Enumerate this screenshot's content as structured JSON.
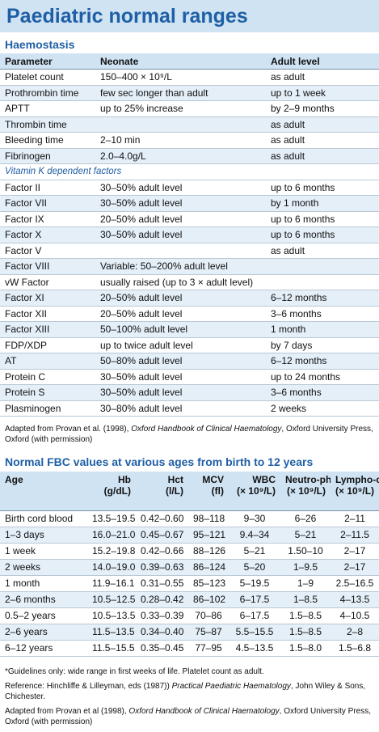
{
  "title": "Paediatric normal ranges",
  "haemostasis": {
    "heading": "Haemostasis",
    "columns": [
      "Parameter",
      "Neonate",
      "Adult level"
    ],
    "rows": [
      {
        "p": "Platelet count",
        "n": "150–400 × 10⁹/L",
        "a": "as adult"
      },
      {
        "p": "Prothrombin time",
        "n": "few sec longer than adult",
        "a": "up to 1 week"
      },
      {
        "p": "APTT",
        "n": "up to 25% increase",
        "a": "by 2–9 months"
      },
      {
        "p": "Thrombin time",
        "n": "",
        "a": "as adult"
      },
      {
        "p": "Bleeding time",
        "n": "2–10 min",
        "a": "as adult"
      },
      {
        "p": "Fibrinogen",
        "n": "2.0–4.0g/L",
        "a": "as adult"
      }
    ],
    "subheading": "Vitamin K dependent factors",
    "rows2": [
      {
        "p": "Factor II",
        "n": "30–50% adult level",
        "a": "up to 6 months"
      },
      {
        "p": "Factor VII",
        "n": "30–50% adult level",
        "a": "by 1 month"
      },
      {
        "p": "Factor IX",
        "n": "20–50% adult level",
        "a": "up to 6 months"
      },
      {
        "p": "Factor X",
        "n": "30–50% adult level",
        "a": "up to 6 months"
      },
      {
        "p": "Factor V",
        "n": "",
        "a": "as adult"
      },
      {
        "p": "Factor VIII",
        "n": "Variable: 50–200% adult level",
        "a": ""
      },
      {
        "p": "vW Factor",
        "n": "usually raised (up to 3 × adult level)",
        "a": ""
      },
      {
        "p": "Factor XI",
        "n": "20–50% adult level",
        "a": "6–12 months"
      },
      {
        "p": "Factor XII",
        "n": "20–50% adult level",
        "a": "3–6 months"
      },
      {
        "p": "Factor XIII",
        "n": "50–100% adult level",
        "a": "1 month"
      },
      {
        "p": "FDP/XDP",
        "n": "up to twice adult level",
        "a": "by 7 days"
      },
      {
        "p": "AT",
        "n": "50–80% adult level",
        "a": "6–12 months"
      },
      {
        "p": "Protein C",
        "n": "30–50% adult level",
        "a": "up to 24 months"
      },
      {
        "p": "Protein S",
        "n": "30–50% adult level",
        "a": "3–6 months"
      },
      {
        "p": "Plasminogen",
        "n": "30–80% adult level",
        "a": "2 weeks"
      }
    ],
    "note": {
      "pre": "Adapted from Provan et al. (1998), ",
      "italic": "Oxford Handbook of Clinical Haematology",
      "post": ", Oxford University Press, Oxford (with permission)"
    }
  },
  "fbc": {
    "heading": "Normal FBC values at various ages from birth to 12 years",
    "columns": [
      {
        "name": "Age",
        "unit": ""
      },
      {
        "name": "Hb",
        "unit": "(g/dL)"
      },
      {
        "name": "Hct",
        "unit": "(l/L)"
      },
      {
        "name": "MCV",
        "unit": "(fl)"
      },
      {
        "name": "WBC",
        "unit": "(× 10⁹/L)"
      },
      {
        "name": "Neutro-phils",
        "unit": "(× 10⁹/L)"
      },
      {
        "name": "Lympho-cytes",
        "unit": "(× 10⁹/L)"
      }
    ],
    "rows": [
      [
        "Birth cord blood",
        "13.5–19.5",
        "0.42–0.60",
        "98–118",
        "9–30",
        "6–26",
        "2–11"
      ],
      [
        "1–3 days",
        "16.0–21.0",
        "0.45–0.67",
        "95–121",
        "9.4–34",
        "5–21",
        "2–11.5"
      ],
      [
        "1 week",
        "15.2–19.8",
        "0.42–0.66",
        "88–126",
        "5–21",
        "1.50–10",
        "2–17"
      ],
      [
        "2 weeks",
        "14.0–19.0",
        "0.39–0.63",
        "86–124",
        "5–20",
        "1–9.5",
        "2–17"
      ],
      [
        "1 month",
        "11.9–16.1",
        "0.31–0.55",
        "85–123",
        "5–19.5",
        "1–9",
        "2.5–16.5"
      ],
      [
        "2–6 months",
        "10.5–12.5",
        "0.28–0.42",
        "86–102",
        "6–17.5",
        "1–8.5",
        "4–13.5"
      ],
      [
        "0.5–2 years",
        "10.5–13.5",
        "0.33–0.39",
        "70–86",
        "6–17.5",
        "1.5–8.5",
        "4–10.5"
      ],
      [
        "2–6 years",
        "11.5–13.5",
        "0.34–0.40",
        "75–87",
        "5.5–15.5",
        "1.5–8.5",
        "2–8"
      ],
      [
        "6–12 years",
        "11.5–15.5",
        "0.35–0.45",
        "77–95",
        "4.5–13.5",
        "1.5–8.0",
        "1.5–6.8"
      ]
    ],
    "notes": {
      "guidelines": "*Guidelines only: wide range in first weeks of life. Platelet count as adult.",
      "ref_pre": "Reference: Hinchliffe & Lilleyman, eds (1987)) ",
      "ref_italic": "Practical Paediatric Haematology",
      "ref_post": ", John Wiley & Sons, Chichester.",
      "adapt_pre": "Adapted from Provan et al (1998), ",
      "adapt_italic": "Oxford Handbook of Clinical Haematology",
      "adapt_post": ", Oxford University Press, Oxford (with permission)"
    }
  }
}
